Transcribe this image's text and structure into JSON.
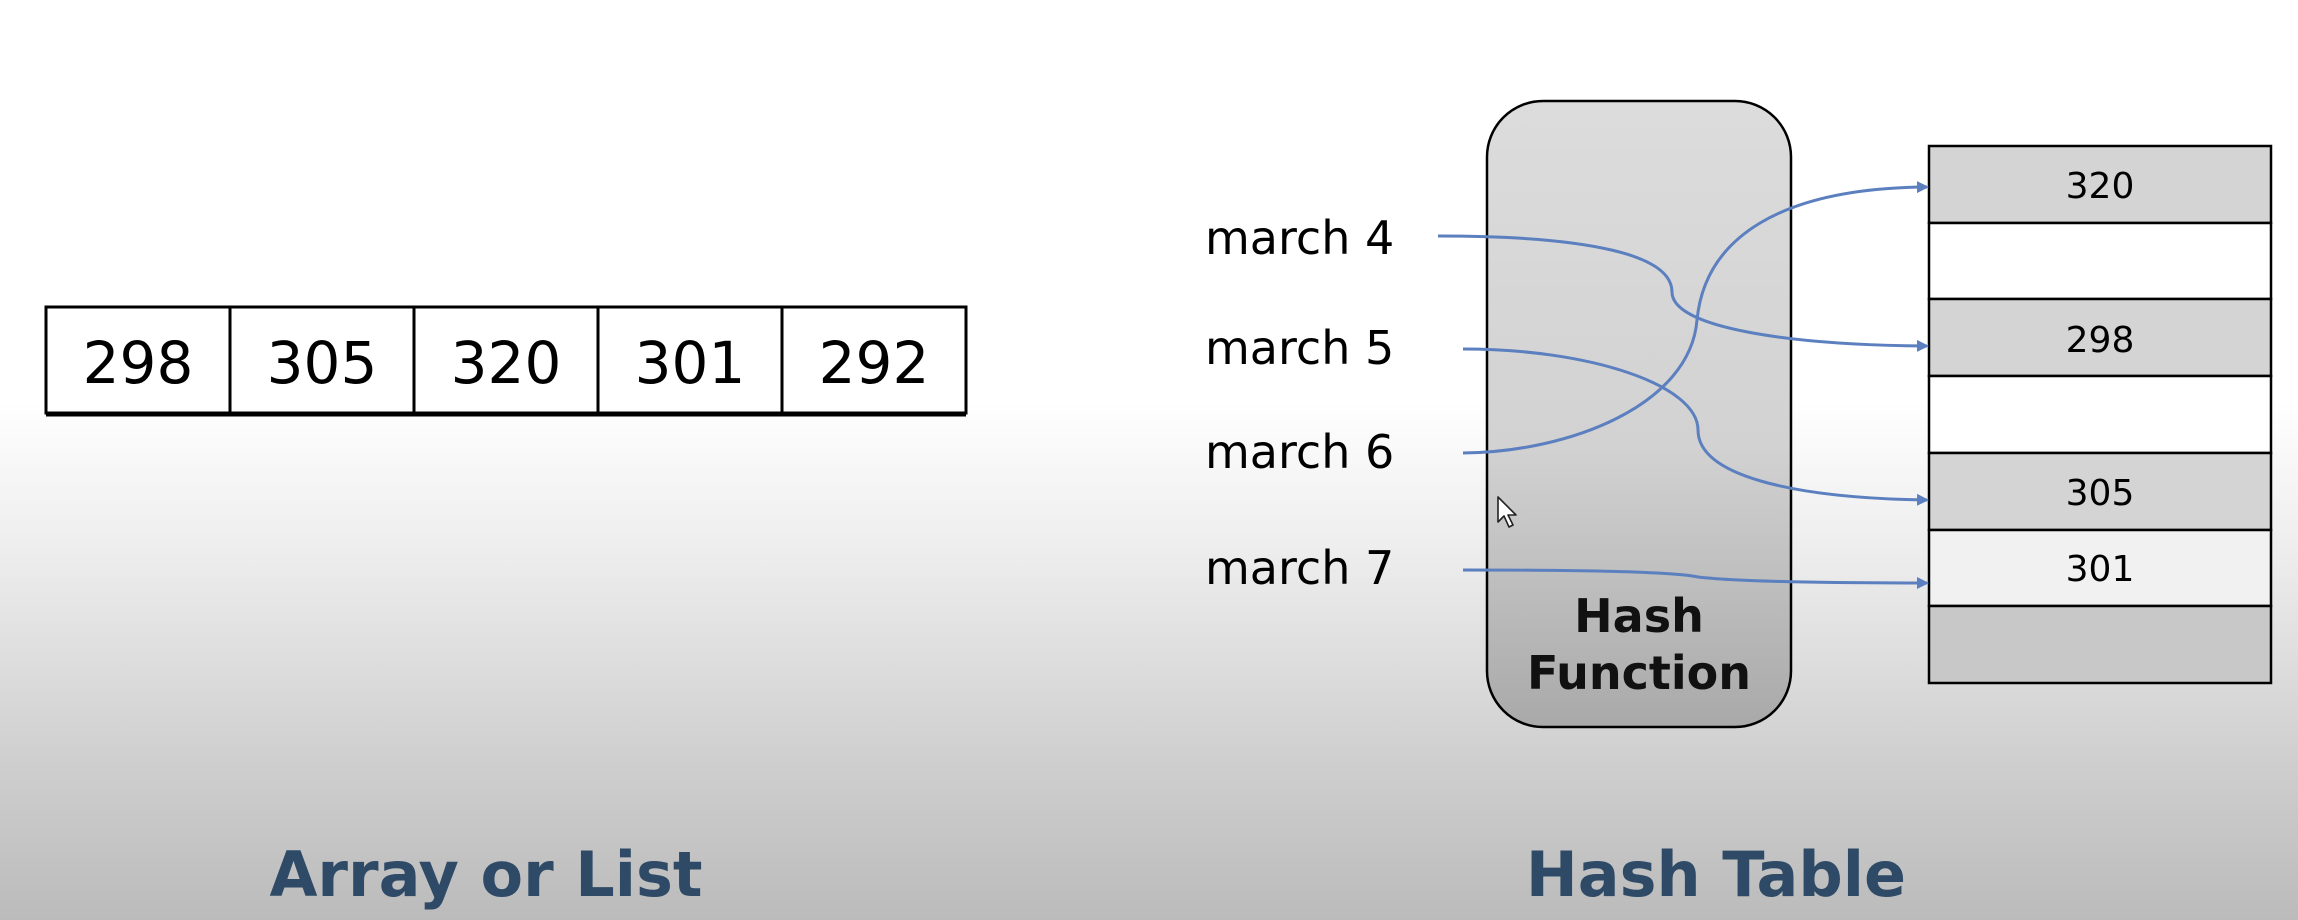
{
  "array": {
    "values": [
      "298",
      "305",
      "320",
      "301",
      "292"
    ],
    "caption": "Array or List"
  },
  "hash": {
    "keys": [
      "march 4",
      "march 5",
      "march 6",
      "march 7"
    ],
    "function_label_line1": "Hash",
    "function_label_line2": "Function",
    "slots": [
      "320",
      "",
      "298",
      "",
      "305",
      "301",
      ""
    ],
    "caption": "Hash Table",
    "mappings": [
      {
        "key": "march 4",
        "slot": 2
      },
      {
        "key": "march 5",
        "slot": 4
      },
      {
        "key": "march 6",
        "slot": 0
      },
      {
        "key": "march 7",
        "slot": 5
      }
    ]
  },
  "colors": {
    "arrow": "#5b7fbf",
    "caption": "#2e4a66",
    "slot_filled": "#d4d4d4",
    "slot_empty": "#ffffff"
  },
  "icons": {
    "cursor": "mouse-pointer-icon"
  }
}
